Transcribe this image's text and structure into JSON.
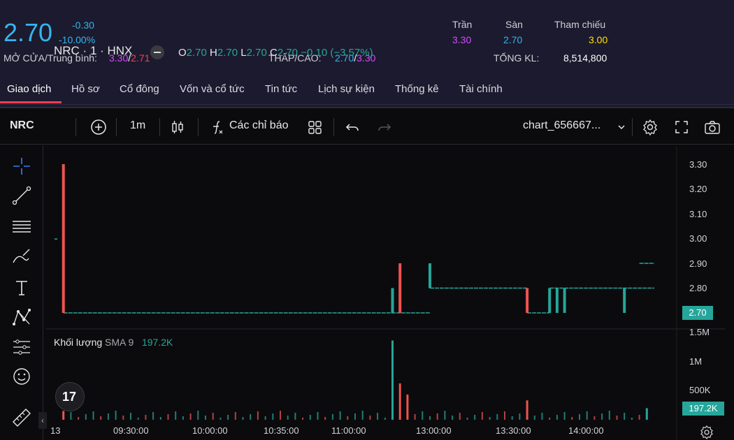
{
  "quote": {
    "price": "2.70",
    "change": "-0.30",
    "change_pct": "-10.00%",
    "ceiling_label": "Trần",
    "ceiling": "3.30",
    "floor_label": "Sàn",
    "floor": "2.70",
    "ref_label": "Tham chiếu",
    "ref": "3.00",
    "open_avg_label": "MỞ CỬA/Trung bình:",
    "open": "3.30",
    "avg": "2.71",
    "lowhigh_label": "THẤP/CAO:",
    "low": "2.70",
    "high": "3.30",
    "total_vol_label": "TỔNG KL:",
    "total_vol": "8,514,800",
    "slash": "/"
  },
  "tabs": [
    {
      "label": "Giao dịch"
    },
    {
      "label": "Hồ sơ"
    },
    {
      "label": "Cổ đông"
    },
    {
      "label": "Vốn và cổ tức"
    },
    {
      "label": "Tin tức"
    },
    {
      "label": "Lịch sự kiện"
    },
    {
      "label": "Thống kê"
    },
    {
      "label": "Tài chính"
    }
  ],
  "toolbar": {
    "symbol": "NRC",
    "interval": "1m",
    "indicators_label": "Các chỉ báo",
    "layout_name": "chart_656667..."
  },
  "legend": {
    "title": "NRC · 1 · HNX",
    "o_key": "O",
    "o": "2.70",
    "h_key": "H",
    "h": "2.70",
    "l_key": "L",
    "l": "2.70",
    "c_key": "C",
    "c": "2.70",
    "change": "−0.10 (−3.57%)"
  },
  "volume_legend": {
    "label": "Khối lượng",
    "sma": "SMA 9",
    "value": "197.2K"
  },
  "price_axis": [
    "3.30",
    "3.20",
    "3.10",
    "3.00",
    "2.90",
    "2.80"
  ],
  "price_badge": "2.70",
  "volume_axis": [
    "1.5M",
    "1M",
    "500K"
  ],
  "volume_badge": "197.2K",
  "time_axis": [
    "13",
    "09:30:00",
    "10:00:00",
    "10:35:00",
    "11:00:00",
    "13:00:00",
    "13:30:00",
    "14:00:00"
  ],
  "logo_text": "17",
  "colors": {
    "up": "#26a69a",
    "down": "#ef5350",
    "accent": "#33b5f0"
  },
  "icons": {
    "crosshair": "crosshair-icon",
    "trendline": "trendline-icon",
    "fib": "horizontal-lines-icon",
    "brush": "brush-icon",
    "text": "text-icon",
    "pattern": "pattern-icon",
    "measure": "measure-icon",
    "emoji": "emoji-icon",
    "ruler": "ruler-icon"
  },
  "chart_data": {
    "type": "candlestick",
    "price_range": [
      2.7,
      3.3
    ],
    "price_ticks": [
      3.3,
      3.2,
      3.1,
      3.0,
      2.9,
      2.8,
      2.7
    ],
    "volume_ticks": [
      "1.5M",
      "1M",
      "500K"
    ],
    "last_price": 2.7,
    "last_volume": "197.2K",
    "candles": [
      {
        "t": 0,
        "o": 3.0,
        "h": 3.0,
        "l": 3.0,
        "c": 3.0
      },
      {
        "t": 1,
        "o": 3.3,
        "h": 3.3,
        "l": 2.7,
        "c": 2.7
      },
      {
        "t": 45,
        "o": 2.7,
        "h": 2.8,
        "l": 2.7,
        "c": 2.8
      },
      {
        "t": 46,
        "o": 2.9,
        "h": 2.9,
        "l": 2.7,
        "c": 2.7
      },
      {
        "t": 50,
        "o": 2.8,
        "h": 2.9,
        "l": 2.8,
        "c": 2.9
      },
      {
        "t": 63,
        "o": 2.8,
        "h": 2.8,
        "l": 2.7,
        "c": 2.7
      },
      {
        "t": 66,
        "o": 2.7,
        "h": 2.8,
        "l": 2.7,
        "c": 2.8
      },
      {
        "t": 67,
        "o": 2.7,
        "h": 2.8,
        "l": 2.7,
        "c": 2.8
      },
      {
        "t": 68,
        "o": 2.7,
        "h": 2.8,
        "l": 2.7,
        "c": 2.8
      },
      {
        "t": 76,
        "o": 2.7,
        "h": 2.8,
        "l": 2.7,
        "c": 2.8
      }
    ],
    "flat_segments": [
      {
        "from": 1,
        "to": 50,
        "price": 2.7
      },
      {
        "from": 50,
        "to": 63,
        "price": 2.8
      },
      {
        "from": 63,
        "to": 66,
        "price": 2.7
      },
      {
        "from": 66,
        "to": 80,
        "price": 2.8
      },
      {
        "from": 78,
        "to": 80,
        "price": 2.9
      }
    ],
    "volume": [
      {
        "t": 1,
        "v": 150000,
        "up": false
      },
      {
        "t": 45,
        "v": 1350000,
        "up": true
      },
      {
        "t": 46,
        "v": 620000,
        "up": false
      },
      {
        "t": 47,
        "v": 430000,
        "up": false
      },
      {
        "t": 63,
        "v": 330000,
        "up": false
      },
      {
        "t": 79,
        "v": 197200,
        "up": true
      }
    ]
  }
}
